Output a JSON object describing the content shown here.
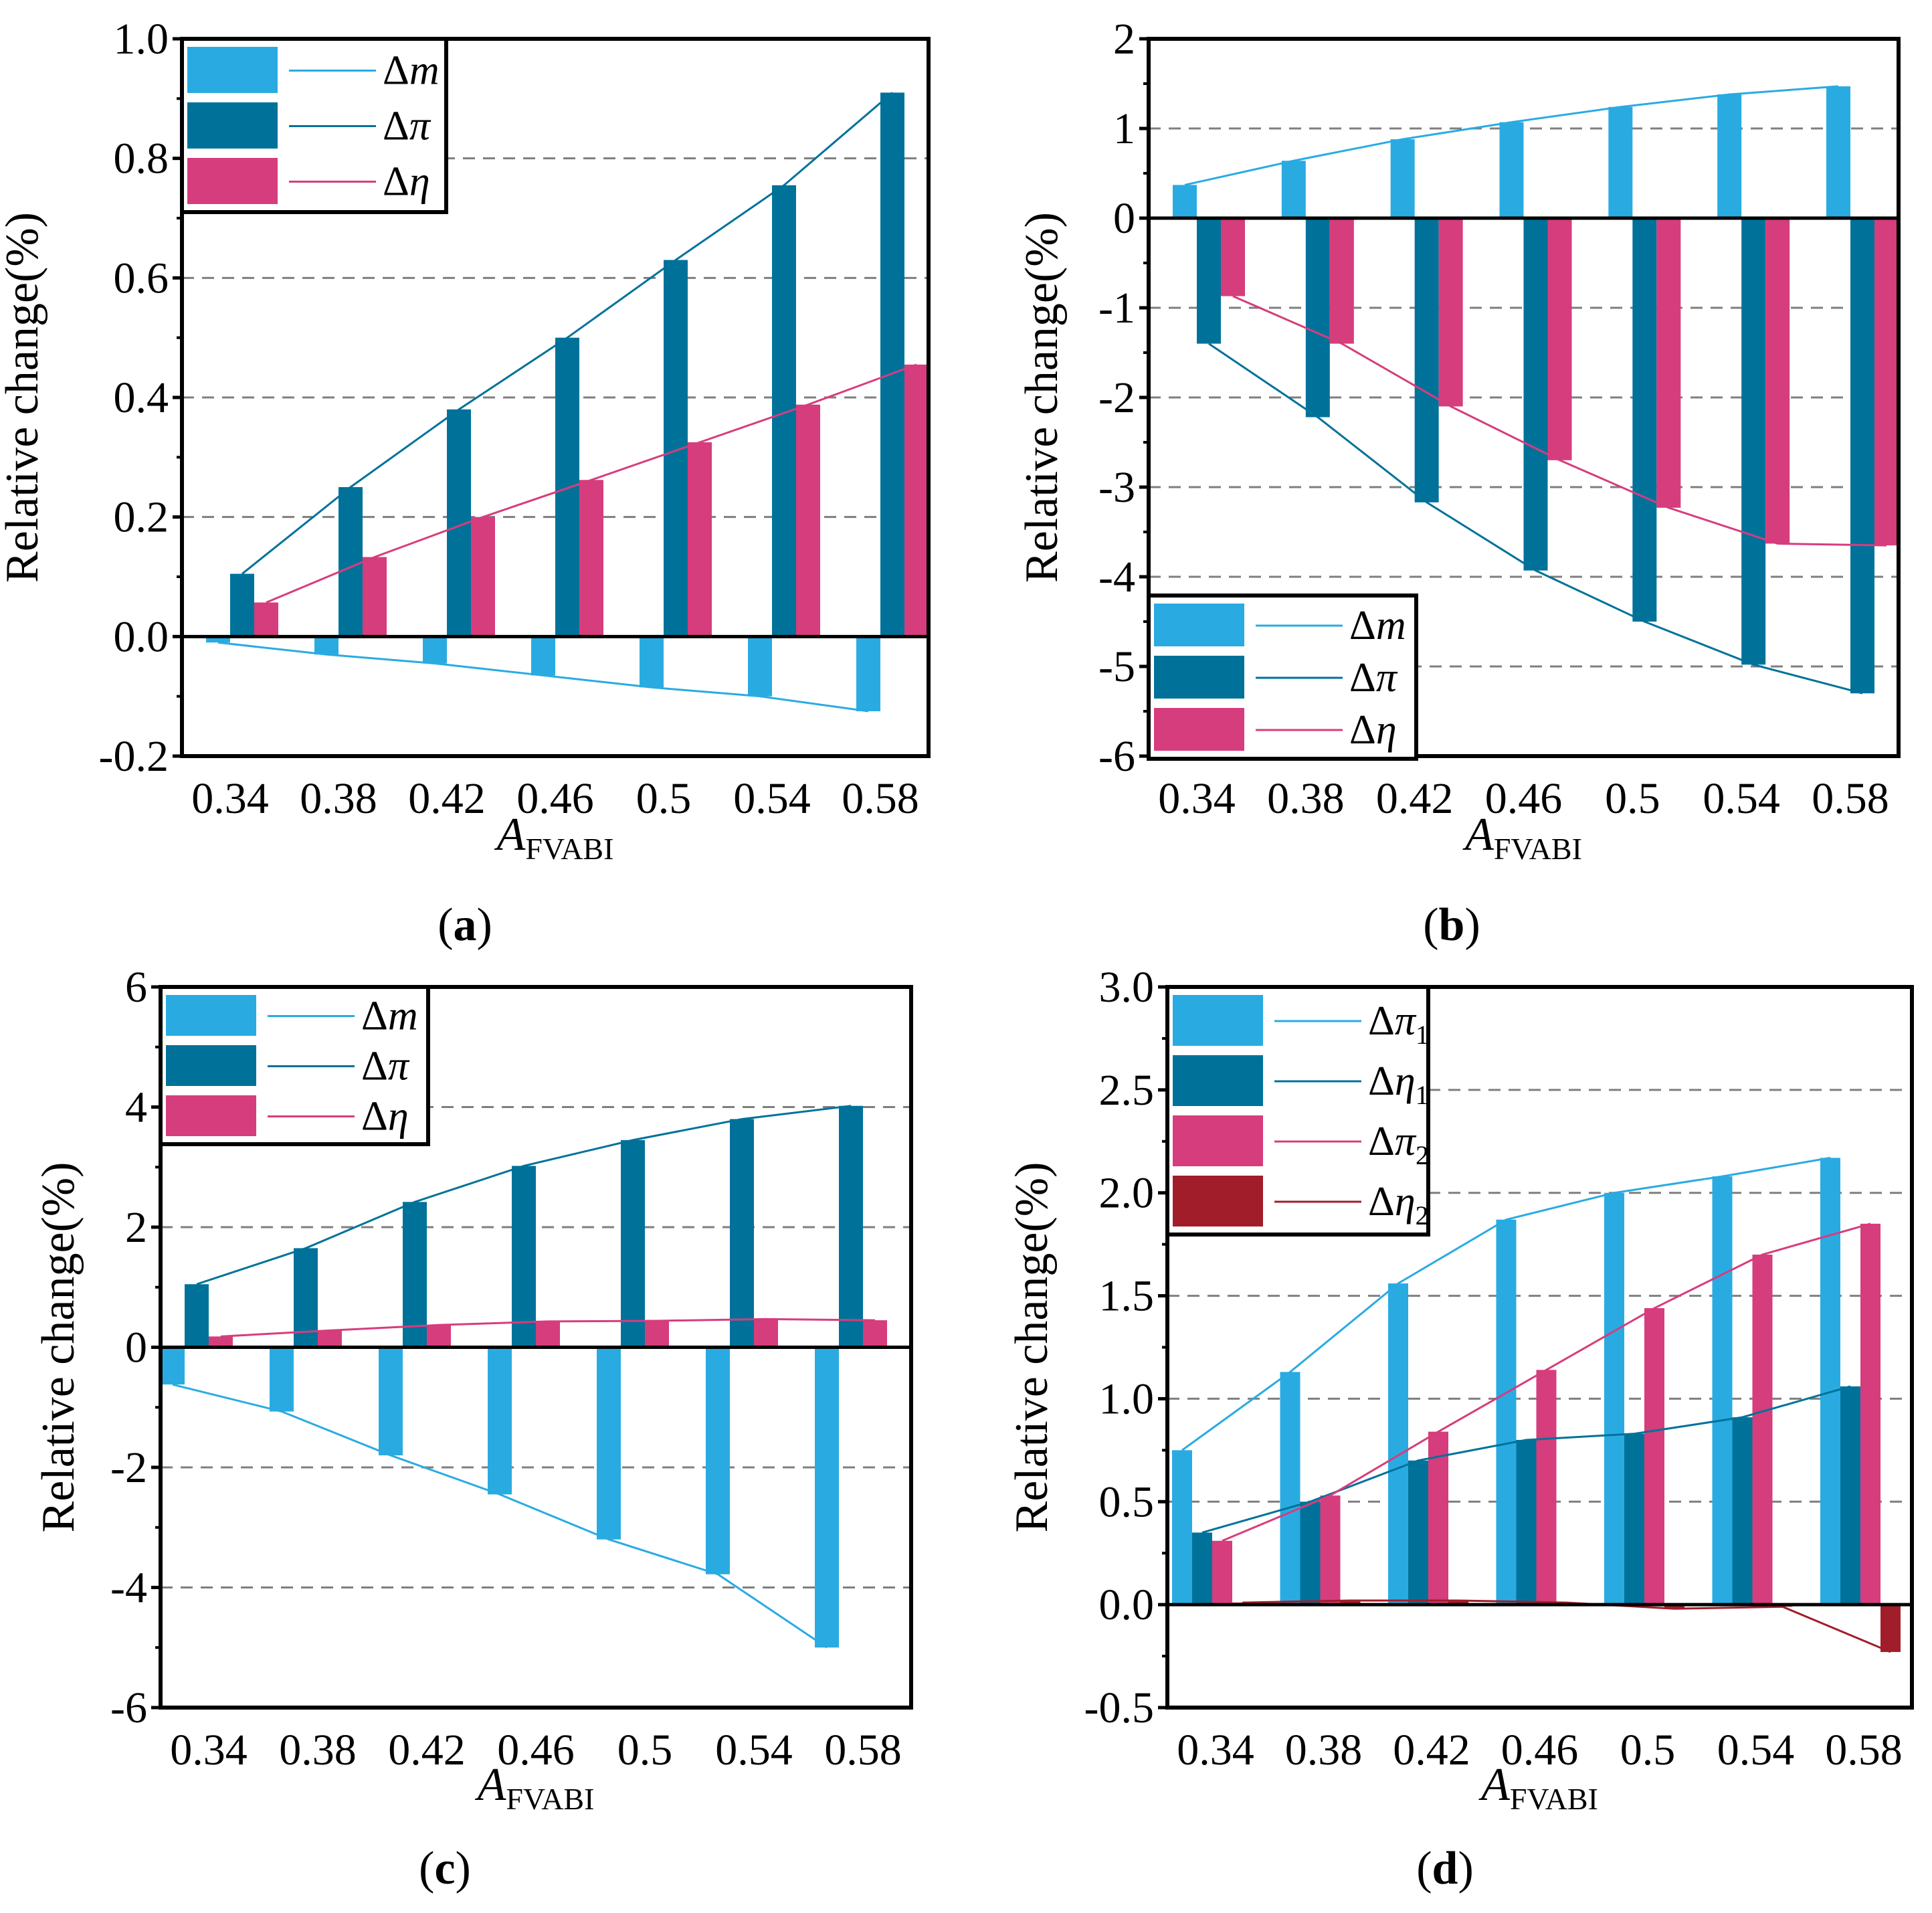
{
  "figure": {
    "colors": {
      "light_blue": "#29abe2",
      "dark_blue": "#00729a",
      "pink": "#d63d7c",
      "dark_red": "#a11d2a",
      "grid": "#7f7f7f"
    }
  },
  "chart_data": [
    {
      "id": "a",
      "type": "bar",
      "caption_open": "(",
      "caption_letter": "a",
      "caption_close": ")",
      "ylabel": "Relative change(%)",
      "xlabel_main": "A",
      "xlabel_sub": "FVABI",
      "categories": [
        "0.34",
        "0.38",
        "0.42",
        "0.46",
        "0.5",
        "0.54",
        "0.58"
      ],
      "ylim": [
        -0.2,
        1.0
      ],
      "yticks": [
        -0.2,
        0.0,
        0.2,
        0.4,
        0.6,
        0.8,
        1.0
      ],
      "ytick_labels": [
        "-0.2",
        "0.0",
        "0.2",
        "0.4",
        "0.6",
        "0.8",
        "1.0"
      ],
      "grid_dashed": [
        0.2,
        0.4,
        0.6,
        0.8
      ],
      "legend_position": "top-left",
      "series": [
        {
          "name": "Δm",
          "legend_base": "Δ",
          "legend_var": "m",
          "legend_sub": "",
          "color": "#29abe2",
          "values": [
            -0.01,
            -0.03,
            -0.045,
            -0.065,
            -0.085,
            -0.1,
            -0.125
          ]
        },
        {
          "name": "Δπ",
          "legend_base": "Δ",
          "legend_var": "π",
          "legend_sub": "",
          "color": "#00729a",
          "values": [
            0.105,
            0.25,
            0.38,
            0.5,
            0.63,
            0.755,
            0.91
          ]
        },
        {
          "name": "Δη",
          "legend_base": "Δ",
          "legend_var": "η",
          "legend_sub": "",
          "color": "#d63d7c",
          "values": [
            0.057,
            0.133,
            0.2,
            0.262,
            0.325,
            0.388,
            0.455
          ]
        }
      ]
    },
    {
      "id": "b",
      "type": "bar",
      "caption_open": "(",
      "caption_letter": "b",
      "caption_close": ")",
      "ylabel": "Relative change(%)",
      "xlabel_main": "A",
      "xlabel_sub": "FVABI",
      "categories": [
        "0.34",
        "0.38",
        "0.42",
        "0.46",
        "0.5",
        "0.54",
        "0.58"
      ],
      "ylim": [
        -6,
        2
      ],
      "yticks": [
        -6,
        -5,
        -4,
        -3,
        -2,
        -1,
        0,
        1,
        2
      ],
      "ytick_labels": [
        "-6",
        "-5",
        "-4",
        "-3",
        "-2",
        "-1",
        "0",
        "1",
        "2"
      ],
      "grid_dashed": [
        1,
        -1,
        -2,
        -3,
        -4,
        -5
      ],
      "legend_position": "bottom-left",
      "series": [
        {
          "name": "Δm",
          "legend_base": "Δ",
          "legend_var": "m",
          "legend_sub": "",
          "color": "#29abe2",
          "values": [
            0.37,
            0.64,
            0.88,
            1.07,
            1.24,
            1.38,
            1.47
          ]
        },
        {
          "name": "Δπ",
          "legend_base": "Δ",
          "legend_var": "π",
          "legend_sub": "",
          "color": "#00729a",
          "values": [
            -1.4,
            -2.22,
            -3.17,
            -3.93,
            -4.5,
            -4.98,
            -5.3
          ]
        },
        {
          "name": "Δη",
          "legend_base": "Δ",
          "legend_var": "η",
          "legend_sub": "",
          "color": "#d63d7c",
          "values": [
            -0.87,
            -1.4,
            -2.1,
            -2.7,
            -3.23,
            -3.63,
            -3.65
          ]
        }
      ]
    },
    {
      "id": "c",
      "type": "bar",
      "caption_open": "(",
      "caption_letter": "c",
      "caption_close": ")",
      "ylabel": "Relative change(%)",
      "xlabel_main": "A",
      "xlabel_sub": "FVABI",
      "categories": [
        "0.34",
        "0.38",
        "0.42",
        "0.46",
        "0.5",
        "0.54",
        "0.58"
      ],
      "ylim": [
        -6,
        6
      ],
      "yticks": [
        -6,
        -4,
        -2,
        0,
        2,
        4,
        6
      ],
      "ytick_labels": [
        "-6",
        "-4",
        "-2",
        "0",
        "2",
        "4",
        "6"
      ],
      "grid_dashed": [
        4,
        2,
        -2,
        -4
      ],
      "legend_position": "top-left",
      "series": [
        {
          "name": "Δm",
          "legend_base": "Δ",
          "legend_var": "m",
          "legend_sub": "",
          "color": "#29abe2",
          "values": [
            -0.62,
            -1.07,
            -1.8,
            -2.45,
            -3.2,
            -3.78,
            -5.0
          ]
        },
        {
          "name": "Δπ",
          "legend_base": "Δ",
          "legend_var": "π",
          "legend_sub": "",
          "color": "#00729a",
          "values": [
            1.05,
            1.65,
            2.42,
            3.02,
            3.45,
            3.8,
            4.02
          ]
        },
        {
          "name": "Δη",
          "legend_base": "Δ",
          "legend_var": "η",
          "legend_sub": "",
          "color": "#d63d7c",
          "values": [
            0.18,
            0.28,
            0.37,
            0.43,
            0.44,
            0.47,
            0.45
          ]
        }
      ]
    },
    {
      "id": "d",
      "type": "bar",
      "caption_open": "(",
      "caption_letter": "d",
      "caption_close": ")",
      "ylabel": "Relative change(%)",
      "xlabel_main": "A",
      "xlabel_sub": "FVABI",
      "categories": [
        "0.34",
        "0.38",
        "0.42",
        "0.46",
        "0.5",
        "0.54",
        "0.58"
      ],
      "ylim": [
        -0.5,
        3.0
      ],
      "yticks": [
        -0.5,
        0.0,
        0.5,
        1.0,
        1.5,
        2.0,
        2.5,
        3.0
      ],
      "ytick_labels": [
        "-0.5",
        "0.0",
        "0.5",
        "1.0",
        "1.5",
        "2.0",
        "2.5",
        "3.0"
      ],
      "grid_dashed": [
        0.5,
        1.0,
        1.5,
        2.0,
        2.5
      ],
      "legend_position": "top-left",
      "series": [
        {
          "name": "Δπ1",
          "legend_base": "Δ",
          "legend_var": "π",
          "legend_sub": "1",
          "color": "#29abe2",
          "values": [
            0.75,
            1.13,
            1.56,
            1.87,
            2.0,
            2.08,
            2.17
          ]
        },
        {
          "name": "Δη1",
          "legend_base": "Δ",
          "legend_var": "η",
          "legend_sub": "1",
          "color": "#00729a",
          "values": [
            0.35,
            0.5,
            0.7,
            0.8,
            0.83,
            0.91,
            1.06
          ]
        },
        {
          "name": "Δπ2",
          "legend_base": "Δ",
          "legend_var": "π",
          "legend_sub": "2",
          "color": "#d63d7c",
          "values": [
            0.31,
            0.53,
            0.84,
            1.14,
            1.44,
            1.7,
            1.85
          ]
        },
        {
          "name": "Δη2",
          "legend_base": "Δ",
          "legend_var": "η",
          "legend_sub": "2",
          "color": "#a11d2a",
          "values": [
            0.01,
            0.02,
            0.02,
            0.01,
            -0.02,
            -0.01,
            -0.23
          ]
        }
      ]
    }
  ]
}
